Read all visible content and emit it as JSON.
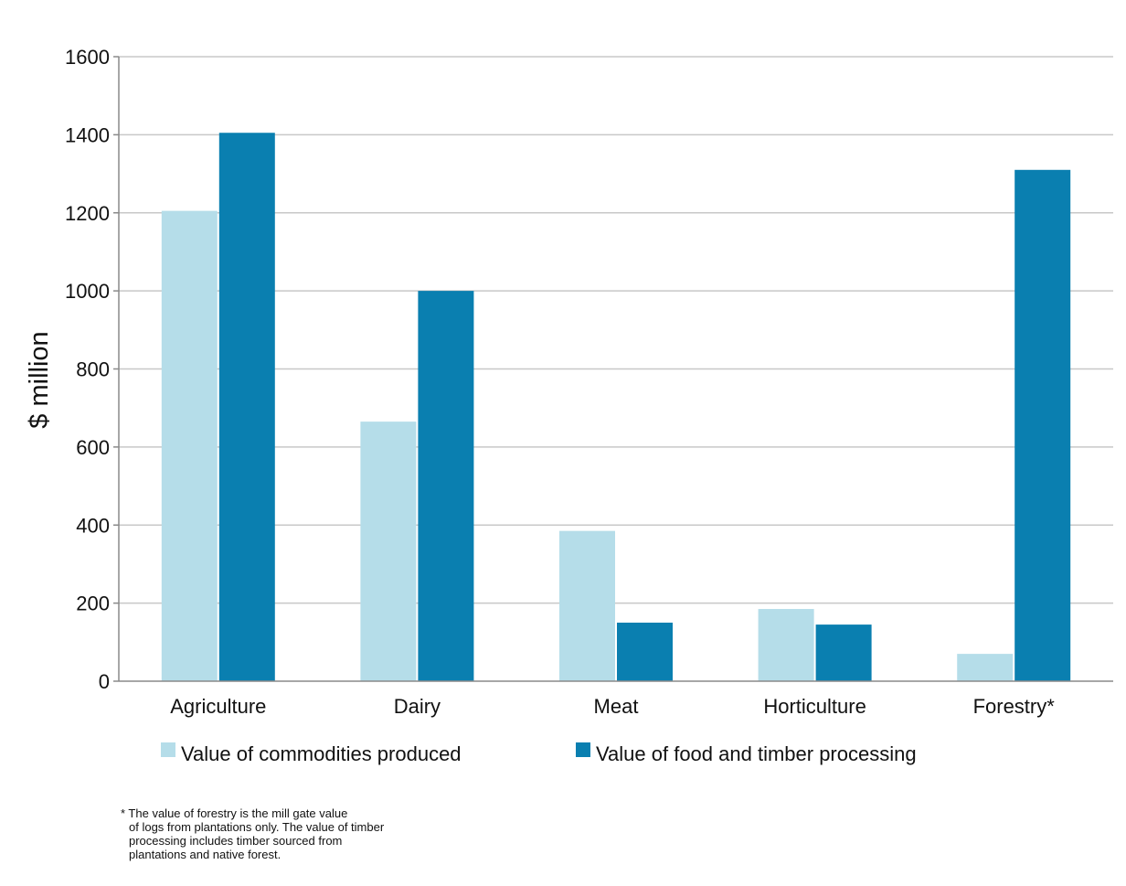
{
  "chart_data": {
    "type": "bar",
    "title": "",
    "xlabel": "",
    "ylabel": "$ million",
    "ylim": [
      0,
      1600
    ],
    "yticks": [
      0,
      200,
      400,
      600,
      800,
      1000,
      1200,
      1400,
      1600
    ],
    "ytick_labels": [
      "0",
      "200",
      "400",
      "600",
      "800",
      "1000",
      "1200",
      "1400",
      "1600"
    ],
    "categories": [
      "Agriculture",
      "Dairy",
      "Meat",
      "Horticulture",
      "Forestry*"
    ],
    "series": [
      {
        "name": "Value of commodities produced",
        "color": "#b5dde9",
        "values": [
          1205,
          665,
          385,
          185,
          70
        ]
      },
      {
        "name": "Value of food and timber processing",
        "color": "#0a7fb0",
        "values": [
          1405,
          1000,
          150,
          145,
          1310
        ]
      }
    ],
    "grid": true,
    "legend_position": "bottom"
  },
  "footnote": {
    "lines": [
      "* The value of forestry is the mill gate value",
      "of logs from plantations only. The value of timber",
      "processing includes timber sourced from",
      "plantations and native forest."
    ]
  }
}
